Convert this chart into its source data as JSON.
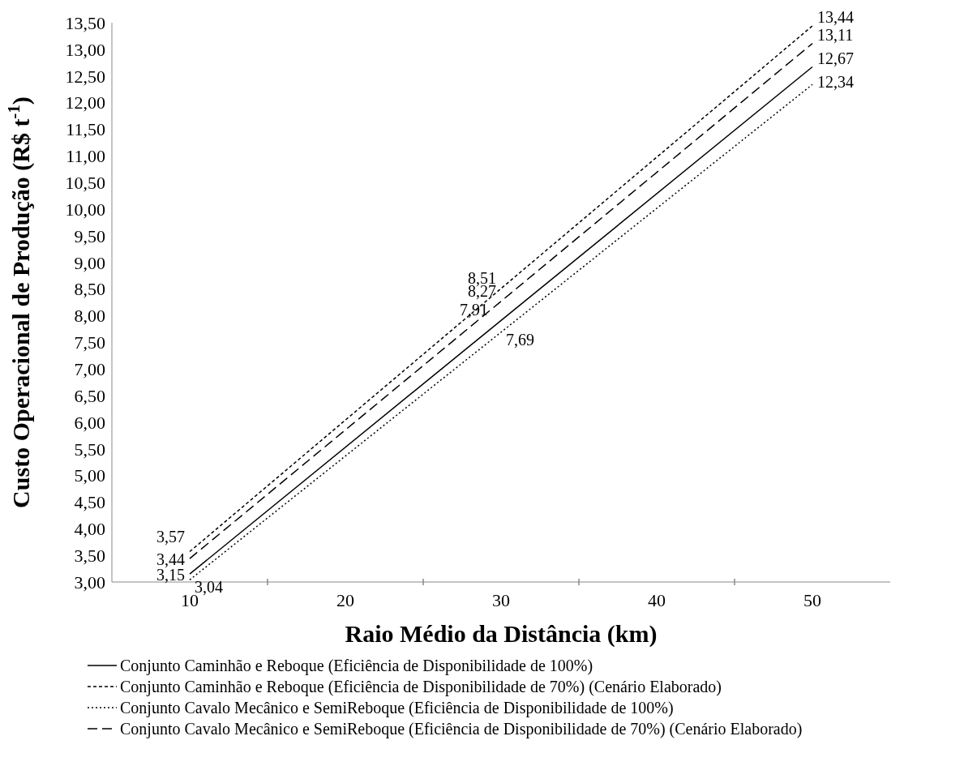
{
  "chart_data": {
    "type": "line",
    "xlabel": "Raio Médio da Distância (km)",
    "ylabel": "Custo Operacional de Produção (R$ t$^{-1}$)",
    "x": [
      10,
      30,
      50
    ],
    "series": [
      {
        "name": "Conjunto Caminhão e Reboque (Eficiência de Disponibilidade de 100%)",
        "color": "#000000",
        "line_style": "solid",
        "values": [
          3.15,
          7.91,
          12.67
        ],
        "value_labels": [
          "3,15",
          "7,91",
          "12,67"
        ]
      },
      {
        "name": "Conjunto Caminhão e Reboque (Eficiência de Disponibilidade de 70%) (Cenário Elaborado)",
        "color": "#000000",
        "line_style": "dashed",
        "values": [
          3.57,
          8.51,
          13.44
        ],
        "value_labels": [
          "3,57",
          "8,51",
          "13,44"
        ]
      },
      {
        "name": "Conjunto Cavalo Mecânico e SemiReboque (Eficiência de Disponibilidade de 100%)",
        "color": "#000000",
        "line_style": "dotted",
        "values": [
          3.04,
          7.69,
          12.34
        ],
        "value_labels": [
          "3,04",
          "7,69",
          "12,34"
        ]
      },
      {
        "name": "Conjunto Cavalo Mecânico e SemiReboque (Eficiência de Disponibilidade de 70%) (Cenário Elaborado)",
        "color": "#000000",
        "line_style": "dashed",
        "values": [
          3.44,
          8.27,
          13.11
        ],
        "value_labels": [
          "3,44",
          "8,27",
          "13,11"
        ]
      }
    ],
    "xlim": [
      5,
      55
    ],
    "xticks": [
      10,
      {
        "value": 15,
        "label": null
      },
      20,
      {
        "value": 25,
        "label": null
      },
      30,
      {
        "value": 35,
        "label": null
      },
      40,
      {
        "value": 45,
        "label": null
      },
      50
    ],
    "ylim": [
      3,
      13.5
    ],
    "yticks": [
      {
        "value": 3,
        "label": "3,00"
      },
      {
        "value": 3.5,
        "label": "3,50"
      },
      {
        "value": 4,
        "label": "4,00"
      },
      {
        "value": 4.5,
        "label": "4,50"
      },
      {
        "value": 5,
        "label": "5,00"
      },
      {
        "value": 5.5,
        "label": "5,50"
      },
      {
        "value": 6,
        "label": "6,00"
      },
      {
        "value": 6.5,
        "label": "6,50"
      },
      {
        "value": 7,
        "label": "7,00"
      },
      {
        "value": 7.5,
        "label": "7,50"
      },
      {
        "value": 8,
        "label": "8,00"
      },
      {
        "value": 8.5,
        "label": "8,50"
      },
      {
        "value": 9,
        "label": "9,00"
      },
      {
        "value": 9.5,
        "label": "9,50"
      },
      {
        "value": 10,
        "label": "10,00"
      },
      {
        "value": 10.5,
        "label": "10,50"
      },
      {
        "value": 11,
        "label": "11,00"
      },
      {
        "value": 11.5,
        "label": "11,50"
      },
      {
        "value": 12,
        "label": "12,00"
      },
      {
        "value": 12.5,
        "label": "12,50"
      },
      {
        "value": 13,
        "label": "13,00"
      },
      {
        "value": 13.5,
        "label": "13,50"
      }
    ],
    "grid": false,
    "legend": "bottom",
    "marker": "none"
  }
}
